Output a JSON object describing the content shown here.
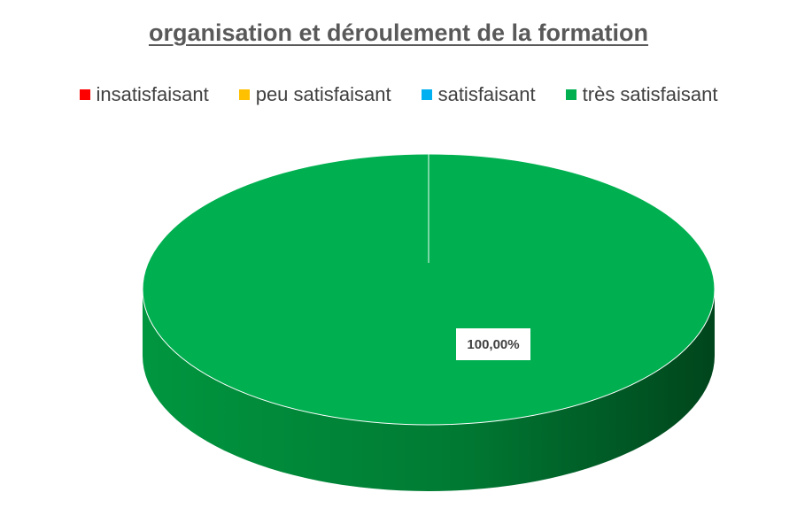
{
  "chart_data": {
    "type": "pie",
    "title": "organisation et déroulement de la formation",
    "categories": [
      "insatisfaisant",
      "peu satisfaisant",
      "satisfaisant",
      "très satisfaisant"
    ],
    "values": [
      0,
      0,
      0,
      100
    ],
    "data_labels": [
      "",
      "",
      "",
      "100,00%"
    ],
    "colors": [
      "#ff0000",
      "#ffc000",
      "#00b0f0",
      "#00b050"
    ],
    "legend_position": "top",
    "style": "3d"
  }
}
